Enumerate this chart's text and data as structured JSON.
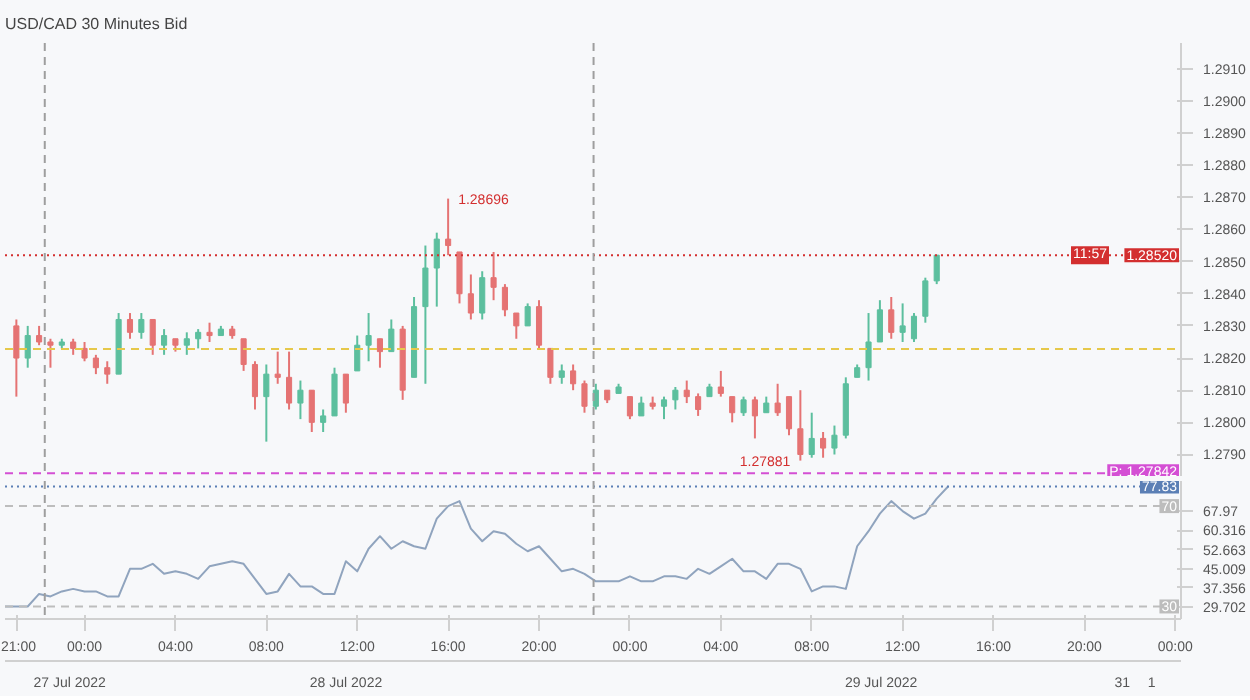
{
  "chart_data": [
    {
      "type": "candlestick",
      "title": "USD/CAD  30 Minutes Bid",
      "x": [
        "2022-07-27T21:00",
        "2022-07-27T21:30",
        "2022-07-27T22:00",
        "2022-07-27T22:30",
        "2022-07-27T23:00",
        "2022-07-27T23:30",
        "2022-07-28T00:00",
        "2022-07-28T00:30",
        "2022-07-28T01:00",
        "2022-07-28T01:30",
        "2022-07-28T02:00",
        "2022-07-28T02:30",
        "2022-07-28T03:00",
        "2022-07-28T03:30",
        "2022-07-28T04:00",
        "2022-07-28T04:30",
        "2022-07-28T05:00",
        "2022-07-28T05:30",
        "2022-07-28T06:00",
        "2022-07-28T06:30",
        "2022-07-28T07:00",
        "2022-07-28T07:30",
        "2022-07-28T08:00",
        "2022-07-28T08:30",
        "2022-07-28T09:00",
        "2022-07-28T09:30",
        "2022-07-28T10:00",
        "2022-07-28T10:30",
        "2022-07-28T11:00",
        "2022-07-28T11:30",
        "2022-07-28T12:00",
        "2022-07-28T12:30",
        "2022-07-28T13:00",
        "2022-07-28T13:30",
        "2022-07-28T14:00",
        "2022-07-28T14:30",
        "2022-07-28T15:00",
        "2022-07-28T15:30",
        "2022-07-28T16:00",
        "2022-07-28T16:30",
        "2022-07-28T17:00",
        "2022-07-28T17:30",
        "2022-07-28T18:00",
        "2022-07-28T18:30",
        "2022-07-28T19:00",
        "2022-07-28T19:30",
        "2022-07-28T20:00",
        "2022-07-28T20:30",
        "2022-07-28T21:00",
        "2022-07-28T21:30",
        "2022-07-28T22:00",
        "2022-07-28T22:30",
        "2022-07-28T23:00",
        "2022-07-28T23:30",
        "2022-07-29T00:00",
        "2022-07-29T00:30",
        "2022-07-29T01:00",
        "2022-07-29T01:30",
        "2022-07-29T02:00",
        "2022-07-29T02:30",
        "2022-07-29T03:00",
        "2022-07-29T03:30",
        "2022-07-29T04:00",
        "2022-07-29T04:30",
        "2022-07-29T05:00",
        "2022-07-29T05:30",
        "2022-07-29T06:00",
        "2022-07-29T06:30",
        "2022-07-29T07:00",
        "2022-07-29T07:30",
        "2022-07-29T08:00",
        "2022-07-29T08:30",
        "2022-07-29T09:00",
        "2022-07-29T09:30",
        "2022-07-29T10:00",
        "2022-07-29T10:30",
        "2022-07-29T11:00",
        "2022-07-29T11:30",
        "2022-07-29T12:00",
        "2022-07-29T12:30",
        "2022-07-29T13:00",
        "2022-07-29T13:30"
      ],
      "ohlc": [
        [
          1.283,
          1.2832,
          1.2808,
          1.282
        ],
        [
          1.282,
          1.283,
          1.2817,
          1.2827
        ],
        [
          1.2827,
          1.283,
          1.2824,
          1.2825
        ],
        [
          1.2825,
          1.2826,
          1.2817,
          1.2824
        ],
        [
          1.2824,
          1.2826,
          1.2823,
          1.2825
        ],
        [
          1.2825,
          1.2826,
          1.2821,
          1.2823
        ],
        [
          1.2823,
          1.2825,
          1.2819,
          1.282
        ],
        [
          1.282,
          1.2821,
          1.2815,
          1.2817
        ],
        [
          1.2817,
          1.2819,
          1.2812,
          1.2815
        ],
        [
          1.2815,
          1.2834,
          1.2815,
          1.2832
        ],
        [
          1.2832,
          1.2834,
          1.2826,
          1.2828
        ],
        [
          1.2828,
          1.2834,
          1.2826,
          1.2832
        ],
        [
          1.2832,
          1.2832,
          1.2821,
          1.2824
        ],
        [
          1.2824,
          1.2829,
          1.2821,
          1.2827
        ],
        [
          1.2826,
          1.2826,
          1.2822,
          1.2824
        ],
        [
          1.2824,
          1.2828,
          1.2821,
          1.2826
        ],
        [
          1.2826,
          1.2829,
          1.2823,
          1.2828
        ],
        [
          1.2828,
          1.2831,
          1.2825,
          1.2827
        ],
        [
          1.2827,
          1.283,
          1.2827,
          1.2829
        ],
        [
          1.2829,
          1.283,
          1.2826,
          1.2827
        ],
        [
          1.2826,
          1.2826,
          1.2816,
          1.2818
        ],
        [
          1.2818,
          1.2819,
          1.2804,
          1.2808
        ],
        [
          1.2808,
          1.2818,
          1.2794,
          1.2815
        ],
        [
          1.2815,
          1.2822,
          1.2812,
          1.2814
        ],
        [
          1.2814,
          1.2822,
          1.2804,
          1.2806
        ],
        [
          1.2806,
          1.2813,
          1.2801,
          1.281
        ],
        [
          1.281,
          1.281,
          1.2797,
          1.28
        ],
        [
          1.28,
          1.2804,
          1.2797,
          1.2802
        ],
        [
          1.2802,
          1.2817,
          1.2802,
          1.2815
        ],
        [
          1.2815,
          1.2815,
          1.2803,
          1.2806
        ],
        [
          1.2816,
          1.2827,
          1.2816,
          1.2824
        ],
        [
          1.2824,
          1.2834,
          1.2819,
          1.2827
        ],
        [
          1.2826,
          1.2826,
          1.2817,
          1.2822
        ],
        [
          1.2822,
          1.2832,
          1.2822,
          1.2829
        ],
        [
          1.2829,
          1.283,
          1.2807,
          1.281
        ],
        [
          1.2814,
          1.2839,
          1.2814,
          1.2836
        ],
        [
          1.2836,
          1.2855,
          1.2812,
          1.2848
        ],
        [
          1.2848,
          1.2859,
          1.2836,
          1.2857
        ],
        [
          1.2857,
          1.28696,
          1.2852,
          1.2855
        ],
        [
          1.2853,
          1.2853,
          1.2837,
          1.284
        ],
        [
          1.284,
          1.2846,
          1.2832,
          1.2834
        ],
        [
          1.2834,
          1.2847,
          1.2832,
          1.2845
        ],
        [
          1.2845,
          1.2853,
          1.2838,
          1.2842
        ],
        [
          1.2842,
          1.2843,
          1.2833,
          1.2835
        ],
        [
          1.2834,
          1.2834,
          1.2826,
          1.283
        ],
        [
          1.283,
          1.2837,
          1.283,
          1.2836
        ],
        [
          1.2836,
          1.2838,
          1.2823,
          1.2824
        ],
        [
          1.2823,
          1.2823,
          1.2812,
          1.2814
        ],
        [
          1.2814,
          1.2818,
          1.2812,
          1.2816
        ],
        [
          1.2816,
          1.2818,
          1.281,
          1.2812
        ],
        [
          1.2812,
          1.2813,
          1.2803,
          1.2805
        ],
        [
          1.2805,
          1.2812,
          1.2804,
          1.281
        ],
        [
          1.281,
          1.281,
          1.2806,
          1.2807
        ],
        [
          1.2809,
          1.2812,
          1.2809,
          1.2811
        ],
        [
          1.2808,
          1.2808,
          1.2801,
          1.2802
        ],
        [
          1.2802,
          1.2808,
          1.2802,
          1.2806
        ],
        [
          1.2806,
          1.2808,
          1.2804,
          1.2805
        ],
        [
          1.2805,
          1.2808,
          1.2801,
          1.2807
        ],
        [
          1.2807,
          1.2811,
          1.2804,
          1.281
        ],
        [
          1.281,
          1.2813,
          1.2806,
          1.2808
        ],
        [
          1.2808,
          1.2809,
          1.2802,
          1.2804
        ],
        [
          1.2808,
          1.2812,
          1.2808,
          1.2811
        ],
        [
          1.2811,
          1.2816,
          1.2808,
          1.2809
        ],
        [
          1.2808,
          1.2808,
          1.28,
          1.2803
        ],
        [
          1.2803,
          1.2808,
          1.2802,
          1.2807
        ],
        [
          1.2807,
          1.2808,
          1.2795,
          1.2802
        ],
        [
          1.2803,
          1.2808,
          1.2803,
          1.2806
        ],
        [
          1.2806,
          1.2812,
          1.2802,
          1.2803
        ],
        [
          1.2808,
          1.2808,
          1.2796,
          1.2798
        ],
        [
          1.2798,
          1.281,
          1.27881,
          1.279
        ],
        [
          1.279,
          1.2803,
          1.2789,
          1.2795
        ],
        [
          1.2795,
          1.2797,
          1.2789,
          1.2792
        ],
        [
          1.2792,
          1.2799,
          1.279,
          1.2796
        ],
        [
          1.2796,
          1.2814,
          1.2795,
          1.2812
        ],
        [
          1.2814,
          1.2818,
          1.2814,
          1.2817
        ],
        [
          1.2817,
          1.2834,
          1.2813,
          1.2825
        ],
        [
          1.2825,
          1.2838,
          1.2825,
          1.2835
        ],
        [
          1.2835,
          1.2839,
          1.2826,
          1.2828
        ],
        [
          1.2828,
          1.2837,
          1.2825,
          1.283
        ],
        [
          1.2826,
          1.2834,
          1.2825,
          1.2833
        ],
        [
          1.2833,
          1.2845,
          1.2831,
          1.2844
        ],
        [
          1.2844,
          1.2852,
          1.2843,
          1.2852
        ]
      ],
      "colors": [
        "#e57373",
        "#5cbf9e",
        "#e57373",
        "#e57373",
        "#5cbf9e",
        "#e57373",
        "#e57373",
        "#e57373",
        "#e57373",
        "#5cbf9e",
        "#e57373",
        "#5cbf9e",
        "#e57373",
        "#5cbf9e",
        "#e57373",
        "#5cbf9e",
        "#5cbf9e",
        "#e57373",
        "#5cbf9e",
        "#e57373",
        "#e57373",
        "#e57373",
        "#5cbf9e",
        "#e57373",
        "#e57373",
        "#5cbf9e",
        "#e57373",
        "#5cbf9e",
        "#5cbf9e",
        "#e57373",
        "#5cbf9e",
        "#5cbf9e",
        "#e57373",
        "#5cbf9e",
        "#e57373",
        "#5cbf9e",
        "#5cbf9e",
        "#5cbf9e",
        "#e57373",
        "#e57373",
        "#e57373",
        "#5cbf9e",
        "#e57373",
        "#e57373",
        "#e57373",
        "#5cbf9e",
        "#e57373",
        "#e57373",
        "#5cbf9e",
        "#e57373",
        "#e57373",
        "#5cbf9e",
        "#e57373",
        "#5cbf9e",
        "#e57373",
        "#5cbf9e",
        "#e57373",
        "#5cbf9e",
        "#5cbf9e",
        "#e57373",
        "#e57373",
        "#5cbf9e",
        "#e57373",
        "#e57373",
        "#5cbf9e",
        "#e57373",
        "#5cbf9e",
        "#e57373",
        "#e57373",
        "#e57373",
        "#5cbf9e",
        "#e57373",
        "#5cbf9e",
        "#5cbf9e",
        "#5cbf9e",
        "#5cbf9e",
        "#5cbf9e",
        "#e57373",
        "#5cbf9e",
        "#5cbf9e",
        "#5cbf9e",
        "#5cbf9e"
      ],
      "xlim": [
        "2022-07-27T20:30",
        "2022-07-30T00:15"
      ],
      "ylim": [
        1.2783,
        1.2918
      ],
      "yticks": [
        {
          "value": 1.279,
          "label": "1.2790"
        },
        {
          "value": 1.28,
          "label": "1.2800"
        },
        {
          "value": 1.281,
          "label": "1.2810"
        },
        {
          "value": 1.282,
          "label": "1.2820"
        },
        {
          "value": 1.283,
          "label": "1.2830"
        },
        {
          "value": 1.284,
          "label": "1.2840"
        },
        {
          "value": 1.285,
          "label": "1.2850"
        },
        {
          "value": 1.286,
          "label": "1.2860"
        },
        {
          "value": 1.287,
          "label": "1.2870"
        },
        {
          "value": 1.288,
          "label": "1.2880"
        },
        {
          "value": 1.289,
          "label": "1.2890"
        },
        {
          "value": 1.29,
          "label": "1.2900"
        },
        {
          "value": 1.291,
          "label": "1.2910"
        }
      ],
      "tick_labels": "y",
      "grid": false,
      "ref_lines": [
        {
          "axis": "y",
          "value": 1.2852,
          "label": "1.28520",
          "color": "#d32f2f",
          "line_style": "dotted"
        },
        {
          "axis": "y",
          "value": 1.28228,
          "label": null,
          "color": "#e6c84a",
          "line_style": "dashed"
        },
        {
          "axis": "y",
          "value": 1.27842,
          "label": "P: 1.27842",
          "color": "#d44fd4",
          "line_style": "dashed"
        },
        {
          "axis": "x",
          "value": "2022-07-27T22:15",
          "label": null,
          "color": "#9e9e9e",
          "line_style": "dashed"
        },
        {
          "axis": "x",
          "value": "2022-07-28T22:24",
          "label": null,
          "color": "#9e9e9e",
          "line_style": "dashed"
        }
      ],
      "annotations": [
        {
          "text": "1.28696",
          "x": "2022-07-28T16:00",
          "y": 1.28696
        },
        {
          "text": "1.27881",
          "x": "2022-07-29T07:30",
          "y": 1.27881
        },
        "11:57"
      ]
    },
    {
      "type": "line",
      "x": [
        "2022-07-27T20:30",
        "2022-07-27T21:00",
        "2022-07-27T21:30",
        "2022-07-27T22:00",
        "2022-07-27T22:30",
        "2022-07-27T23:00",
        "2022-07-27T23:30",
        "2022-07-28T00:00",
        "2022-07-28T00:30",
        "2022-07-28T01:00",
        "2022-07-28T01:30",
        "2022-07-28T02:00",
        "2022-07-28T02:30",
        "2022-07-28T03:00",
        "2022-07-28T03:30",
        "2022-07-28T04:00",
        "2022-07-28T04:30",
        "2022-07-28T05:00",
        "2022-07-28T05:30",
        "2022-07-28T06:00",
        "2022-07-28T06:30",
        "2022-07-28T07:00",
        "2022-07-28T07:30",
        "2022-07-28T08:00",
        "2022-07-28T08:30",
        "2022-07-28T09:00",
        "2022-07-28T09:30",
        "2022-07-28T10:00",
        "2022-07-28T10:30",
        "2022-07-28T11:00",
        "2022-07-28T11:30",
        "2022-07-28T12:00",
        "2022-07-28T12:30",
        "2022-07-28T13:00",
        "2022-07-28T13:30",
        "2022-07-28T14:00",
        "2022-07-28T14:30",
        "2022-07-28T15:00",
        "2022-07-28T15:30",
        "2022-07-28T16:00",
        "2022-07-28T16:30",
        "2022-07-28T17:00",
        "2022-07-28T17:30",
        "2022-07-28T18:00",
        "2022-07-28T18:30",
        "2022-07-28T19:00",
        "2022-07-28T19:30",
        "2022-07-28T20:00",
        "2022-07-28T20:30",
        "2022-07-28T21:00",
        "2022-07-28T21:30",
        "2022-07-28T22:00",
        "2022-07-28T22:30",
        "2022-07-28T23:00",
        "2022-07-28T23:30",
        "2022-07-29T00:00",
        "2022-07-29T00:30",
        "2022-07-29T01:00",
        "2022-07-29T01:30",
        "2022-07-29T02:00",
        "2022-07-29T02:30",
        "2022-07-29T03:00",
        "2022-07-29T03:30",
        "2022-07-29T04:00",
        "2022-07-29T04:30",
        "2022-07-29T05:00",
        "2022-07-29T05:30",
        "2022-07-29T06:00",
        "2022-07-29T06:30",
        "2022-07-29T07:00",
        "2022-07-29T07:30",
        "2022-07-29T08:00",
        "2022-07-29T08:30",
        "2022-07-29T09:00",
        "2022-07-29T09:30",
        "2022-07-29T10:00",
        "2022-07-29T10:30",
        "2022-07-29T11:00",
        "2022-07-29T11:30",
        "2022-07-29T12:00",
        "2022-07-29T12:30",
        "2022-07-29T13:00",
        "2022-07-29T13:30",
        "2022-07-29T14:00"
      ],
      "values": [
        30,
        30,
        30,
        35,
        34,
        36,
        37,
        36,
        36,
        34,
        34,
        45,
        45,
        47,
        43,
        44,
        43,
        41,
        46,
        47,
        48,
        47,
        41,
        35,
        36,
        43,
        38,
        38,
        35,
        35,
        48,
        44,
        53,
        58,
        53,
        56,
        54,
        53,
        65,
        70,
        72,
        61,
        56,
        60,
        59,
        55,
        52,
        54,
        49,
        44,
        45,
        43,
        40,
        40,
        40,
        42,
        40,
        40,
        42,
        42,
        41,
        45,
        43,
        46,
        49,
        44,
        44,
        41,
        47,
        47,
        45,
        36,
        38,
        38,
        37,
        54,
        60,
        67,
        72,
        68,
        65,
        67,
        73,
        77.83
      ],
      "color": "#90a4be",
      "xlim": [
        "2022-07-27T20:30",
        "2022-07-30T00:15"
      ],
      "ylim": [
        25,
        80
      ],
      "xticks": [
        {
          "value": "2022-07-27T21:00",
          "label": "21:00"
        },
        {
          "value": "2022-07-28T00:00",
          "label": "00:00"
        },
        {
          "value": "2022-07-28T04:00",
          "label": "04:00"
        },
        {
          "value": "2022-07-28T08:00",
          "label": "08:00"
        },
        {
          "value": "2022-07-28T12:00",
          "label": "12:00"
        },
        {
          "value": "2022-07-28T16:00",
          "label": "16:00"
        },
        {
          "value": "2022-07-28T20:00",
          "label": "20:00"
        },
        {
          "value": "2022-07-29T00:00",
          "label": "00:00"
        },
        {
          "value": "2022-07-29T04:00",
          "label": "04:00"
        },
        {
          "value": "2022-07-29T08:00",
          "label": "08:00"
        },
        {
          "value": "2022-07-29T12:00",
          "label": "12:00"
        },
        {
          "value": "2022-07-29T16:00",
          "label": "16:00"
        },
        {
          "value": "2022-07-29T20:00",
          "label": "20:00"
        },
        {
          "value": "2022-07-30T00:00",
          "label": "00:00"
        }
      ],
      "yticks": [
        29.702,
        37.356,
        45.009,
        52.663,
        60.316,
        67.97
      ],
      "grid": false,
      "marker": "none",
      "line_style": "solid",
      "ref_lines": [
        {
          "axis": "y",
          "value": 70,
          "label": "70",
          "color": "#bdbdbd",
          "line_style": "dashed"
        },
        {
          "axis": "y",
          "value": 30,
          "label": "30",
          "color": "#bdbdbd",
          "line_style": "dashed"
        },
        {
          "axis": "y",
          "value": 77.83,
          "label": "77.83",
          "color": "#5b7fb5",
          "line_style": "dotted"
        },
        {
          "axis": "x",
          "value": "2022-07-27T22:15",
          "label": null,
          "color": "#9e9e9e",
          "line_style": "dashed"
        },
        {
          "axis": "x",
          "value": "2022-07-28T22:24",
          "label": null,
          "color": "#9e9e9e",
          "line_style": "dashed"
        }
      ],
      "annotations": [
        "27 Jul 2022",
        "28 Jul 2022",
        "29 Jul 2022",
        "31",
        "1"
      ]
    }
  ]
}
